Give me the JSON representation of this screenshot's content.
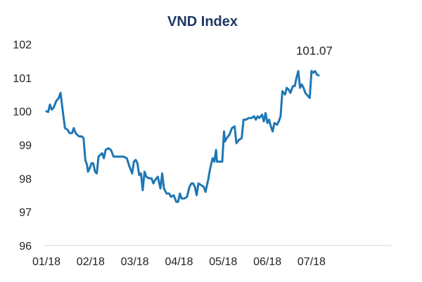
{
  "chart_data": {
    "type": "line",
    "title": "VND Index",
    "xlabel": "",
    "ylabel": "",
    "ylim": [
      96,
      102
    ],
    "yticks": [
      96,
      97,
      98,
      99,
      100,
      101,
      102
    ],
    "xticks": [
      "01/18",
      "02/18",
      "03/18",
      "04/18",
      "05/18",
      "06/18",
      "07/18"
    ],
    "xlim": [
      0,
      7.8
    ],
    "grid": false,
    "legend": "none",
    "color": "#1F77B4",
    "annotation": {
      "text": "101.07",
      "x": 7.66,
      "y": 101.07
    },
    "series": [
      {
        "name": "",
        "points": [
          [
            0.0,
            100.0
          ],
          [
            0.04,
            99.98
          ],
          [
            0.08,
            100.2
          ],
          [
            0.12,
            100.05
          ],
          [
            0.16,
            100.1
          ],
          [
            0.22,
            100.3
          ],
          [
            0.28,
            100.4
          ],
          [
            0.32,
            100.55
          ],
          [
            0.38,
            99.9
          ],
          [
            0.42,
            99.5
          ],
          [
            0.48,
            99.45
          ],
          [
            0.52,
            99.35
          ],
          [
            0.58,
            99.35
          ],
          [
            0.62,
            99.5
          ],
          [
            0.66,
            99.35
          ],
          [
            0.7,
            99.3
          ],
          [
            0.74,
            99.25
          ],
          [
            0.8,
            99.25
          ],
          [
            0.84,
            99.2
          ],
          [
            0.88,
            98.55
          ],
          [
            0.92,
            98.4
          ],
          [
            0.94,
            98.2
          ],
          [
            0.98,
            98.3
          ],
          [
            1.02,
            98.45
          ],
          [
            1.06,
            98.45
          ],
          [
            1.1,
            98.2
          ],
          [
            1.14,
            98.15
          ],
          [
            1.18,
            98.65
          ],
          [
            1.22,
            98.7
          ],
          [
            1.26,
            98.75
          ],
          [
            1.3,
            98.6
          ],
          [
            1.34,
            98.85
          ],
          [
            1.4,
            98.9
          ],
          [
            1.46,
            98.85
          ],
          [
            1.52,
            98.65
          ],
          [
            1.58,
            98.65
          ],
          [
            1.66,
            98.65
          ],
          [
            1.74,
            98.65
          ],
          [
            1.82,
            98.6
          ],
          [
            1.88,
            98.35
          ],
          [
            1.94,
            98.15
          ],
          [
            1.98,
            98.5
          ],
          [
            2.02,
            98.55
          ],
          [
            2.06,
            98.45
          ],
          [
            2.1,
            98.1
          ],
          [
            2.14,
            98.15
          ],
          [
            2.18,
            97.65
          ],
          [
            2.22,
            98.2
          ],
          [
            2.26,
            98.05
          ],
          [
            2.32,
            98.0
          ],
          [
            2.38,
            98.0
          ],
          [
            2.42,
            97.85
          ],
          [
            2.46,
            97.95
          ],
          [
            2.52,
            98.05
          ],
          [
            2.58,
            97.7
          ],
          [
            2.62,
            98.15
          ],
          [
            2.66,
            97.7
          ],
          [
            2.72,
            97.55
          ],
          [
            2.78,
            97.55
          ],
          [
            2.82,
            97.45
          ],
          [
            2.88,
            97.5
          ],
          [
            2.94,
            97.3
          ],
          [
            2.98,
            97.3
          ],
          [
            3.02,
            97.55
          ],
          [
            3.06,
            97.4
          ],
          [
            3.12,
            97.4
          ],
          [
            3.18,
            97.45
          ],
          [
            3.24,
            97.75
          ],
          [
            3.28,
            97.85
          ],
          [
            3.32,
            97.85
          ],
          [
            3.36,
            97.75
          ],
          [
            3.4,
            97.5
          ],
          [
            3.44,
            97.85
          ],
          [
            3.5,
            97.8
          ],
          [
            3.56,
            97.75
          ],
          [
            3.6,
            97.6
          ],
          [
            3.66,
            97.95
          ],
          [
            3.7,
            98.25
          ],
          [
            3.76,
            98.6
          ],
          [
            3.8,
            98.5
          ],
          [
            3.84,
            98.85
          ],
          [
            3.86,
            98.5
          ],
          [
            3.9,
            98.5
          ],
          [
            3.94,
            98.5
          ],
          [
            3.98,
            98.5
          ],
          [
            4.02,
            99.4
          ],
          [
            4.04,
            99.1
          ],
          [
            4.08,
            99.2
          ],
          [
            4.14,
            99.3
          ],
          [
            4.2,
            99.5
          ],
          [
            4.26,
            99.55
          ],
          [
            4.3,
            99.05
          ],
          [
            4.36,
            99.15
          ],
          [
            4.42,
            99.2
          ],
          [
            4.46,
            99.75
          ],
          [
            4.52,
            99.75
          ],
          [
            4.58,
            99.8
          ],
          [
            4.64,
            99.8
          ],
          [
            4.7,
            99.85
          ],
          [
            4.74,
            99.75
          ],
          [
            4.78,
            99.85
          ],
          [
            4.82,
            99.8
          ],
          [
            4.88,
            99.9
          ],
          [
            4.92,
            99.7
          ],
          [
            4.96,
            99.95
          ],
          [
            5.0,
            99.65
          ],
          [
            5.04,
            99.75
          ],
          [
            5.08,
            99.55
          ],
          [
            5.12,
            99.4
          ],
          [
            5.16,
            99.65
          ],
          [
            5.22,
            99.6
          ],
          [
            5.26,
            99.7
          ],
          [
            5.3,
            99.85
          ],
          [
            5.34,
            100.6
          ],
          [
            5.4,
            100.5
          ],
          [
            5.44,
            100.7
          ],
          [
            5.48,
            100.65
          ],
          [
            5.52,
            100.55
          ],
          [
            5.58,
            100.75
          ],
          [
            5.62,
            100.75
          ],
          [
            5.66,
            101.0
          ],
          [
            5.7,
            101.2
          ],
          [
            5.74,
            100.7
          ],
          [
            5.78,
            100.8
          ],
          [
            5.82,
            100.7
          ],
          [
            5.86,
            100.55
          ],
          [
            5.92,
            100.45
          ],
          [
            5.96,
            100.4
          ],
          [
            6.0,
            101.2
          ],
          [
            6.04,
            101.15
          ],
          [
            6.08,
            101.2
          ],
          [
            6.12,
            101.1
          ],
          [
            6.16,
            101.07
          ]
        ]
      }
    ]
  }
}
